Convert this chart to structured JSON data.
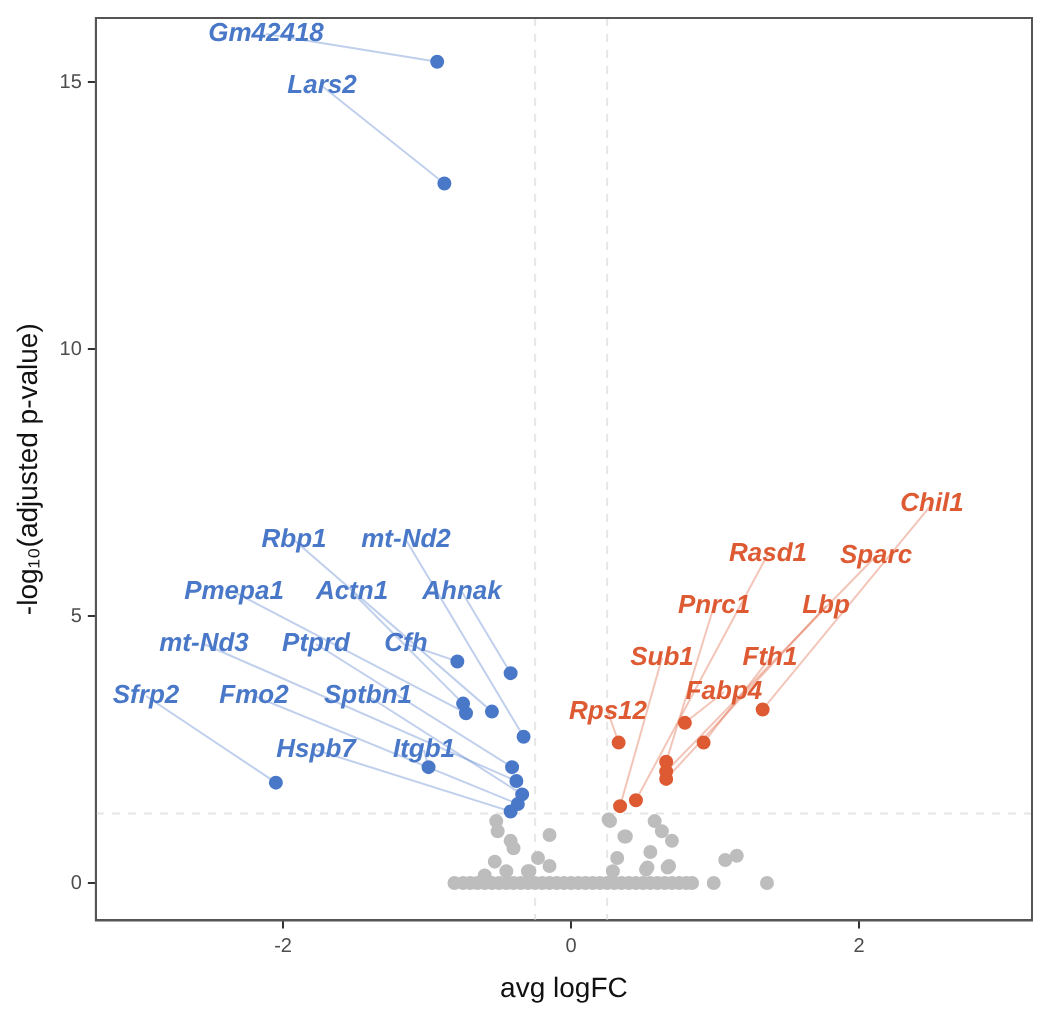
{
  "chart_data": {
    "type": "scatter",
    "xlabel": "avg logFC",
    "ylabel": "-log₁₀(adjusted p-value)",
    "xlim": [
      -3.3,
      3.2
    ],
    "ylim": [
      -0.7,
      16.2
    ],
    "xticks": [
      -2,
      0,
      2
    ],
    "yticks": [
      0,
      5,
      10,
      15
    ],
    "grid": false,
    "legend": false,
    "marker": "circle",
    "ref_lines": [
      {
        "axis": "x",
        "value": -0.25,
        "color": "#e6e6e6",
        "line_style": "dashed"
      },
      {
        "axis": "x",
        "value": 0.25,
        "color": "#e6e6e6",
        "line_style": "dashed"
      },
      {
        "axis": "y",
        "value": 1.3,
        "color": "#e6e6e6",
        "line_style": "dashed"
      }
    ],
    "series": [
      {
        "color": "#bdbdbd",
        "x": [
          -0.81,
          -0.75,
          -0.7,
          -0.65,
          -0.6,
          -0.55,
          -0.5,
          -0.45,
          -0.4,
          -0.35,
          -0.3,
          -0.25,
          -0.2,
          -0.15,
          -0.1,
          -0.05,
          0,
          0.05,
          0.1,
          0.15,
          0.2,
          0.25,
          0.3,
          0.35,
          0.4,
          0.45,
          0.5,
          0.55,
          0.6,
          0.65,
          0.7,
          0.75,
          0.8,
          0.84,
          0.99,
          1.36,
          -0.52,
          -0.51,
          -0.42,
          -0.4,
          -0.15,
          -0.23,
          -0.15,
          -0.53,
          -0.29,
          0.26,
          0.38,
          0.27,
          0.58,
          0.63,
          0.7,
          0.37,
          0.32,
          0.55,
          0.53,
          0.68,
          1.07,
          1.15,
          -0.6,
          -0.45,
          -0.3,
          0.29,
          0.52,
          0.67
        ],
        "values": [
          0,
          0,
          0,
          0,
          0,
          0,
          0,
          0,
          0,
          0,
          0,
          0,
          0,
          0,
          0,
          0,
          0,
          0,
          0,
          0,
          0,
          0,
          0,
          0,
          0,
          0,
          0,
          0,
          0,
          0,
          0,
          0,
          0,
          0,
          0,
          0,
          1.16,
          0.97,
          0.79,
          0.65,
          0.9,
          0.47,
          0.32,
          0.4,
          0.22,
          1.19,
          0.87,
          1.16,
          1.16,
          0.97,
          0.79,
          0.87,
          0.47,
          0.58,
          0.29,
          0.32,
          0.43,
          0.51,
          0.14,
          0.22,
          0.22,
          0.22,
          0.25,
          0.29
        ]
      },
      {
        "color": "#4a78c8",
        "x": [
          -0.93,
          -0.88,
          -0.79,
          -0.42,
          -0.75,
          -0.73,
          -0.55,
          -0.33,
          -2.05,
          -0.99,
          -0.41,
          -0.38,
          -0.34,
          -0.37,
          -0.42
        ],
        "values": [
          15.38,
          13.1,
          4.15,
          3.93,
          3.36,
          3.18,
          3.21,
          2.74,
          1.88,
          2.17,
          2.17,
          1.91,
          1.66,
          1.48,
          1.34
        ]
      },
      {
        "color": "#dd5a33",
        "x": [
          0.33,
          0.34,
          0.45,
          0.66,
          0.66,
          0.66,
          0.92,
          0.79,
          1.33
        ],
        "values": [
          2.63,
          1.44,
          1.55,
          2.27,
          2.09,
          1.95,
          2.63,
          3.0,
          3.25
        ]
      }
    ],
    "annotations": [
      {
        "text": "Gm42418",
        "x": -0.93,
        "y": 15.38
      },
      {
        "text": "Lars2",
        "x": -0.88,
        "y": 13.1
      },
      {
        "text": "Cfh",
        "x": -0.79,
        "y": 4.15
      },
      {
        "text": "Ahnak",
        "x": -0.42,
        "y": 3.93
      },
      {
        "text": "Actn1",
        "x": -0.75,
        "y": 3.36
      },
      {
        "text": "Pmepa1",
        "x": -0.73,
        "y": 3.18
      },
      {
        "text": "Rbp1",
        "x": -0.55,
        "y": 3.21
      },
      {
        "text": "mt-Nd2",
        "x": -0.33,
        "y": 2.74
      },
      {
        "text": "Sfrp2",
        "x": -2.05,
        "y": 1.88
      },
      {
        "text": "Itgb1",
        "x": -0.99,
        "y": 2.17
      },
      {
        "text": "Ptprd",
        "x": -0.41,
        "y": 2.17
      },
      {
        "text": "mt-Nd3",
        "x": -0.38,
        "y": 1.91
      },
      {
        "text": "Sptbn1",
        "x": -0.34,
        "y": 1.66
      },
      {
        "text": "Fmo2",
        "x": -0.37,
        "y": 1.48
      },
      {
        "text": "Hspb7",
        "x": -0.42,
        "y": 1.34
      },
      {
        "text": "Rps12",
        "x": 0.33,
        "y": 2.63
      },
      {
        "text": "Sub1",
        "x": 0.34,
        "y": 1.44
      },
      {
        "text": "Rasd1",
        "x": 0.45,
        "y": 1.55
      },
      {
        "text": "Pnrc1",
        "x": 0.66,
        "y": 2.27
      },
      {
        "text": "Sparc",
        "x": 0.66,
        "y": 2.09
      },
      {
        "text": "Lbp",
        "x": 0.66,
        "y": 1.95
      },
      {
        "text": "Fth1",
        "x": 0.92,
        "y": 2.63
      },
      {
        "text": "Fabp4",
        "x": 0.79,
        "y": 3.0
      },
      {
        "text": "Chil1",
        "x": 1.33,
        "y": 3.25
      }
    ]
  }
}
